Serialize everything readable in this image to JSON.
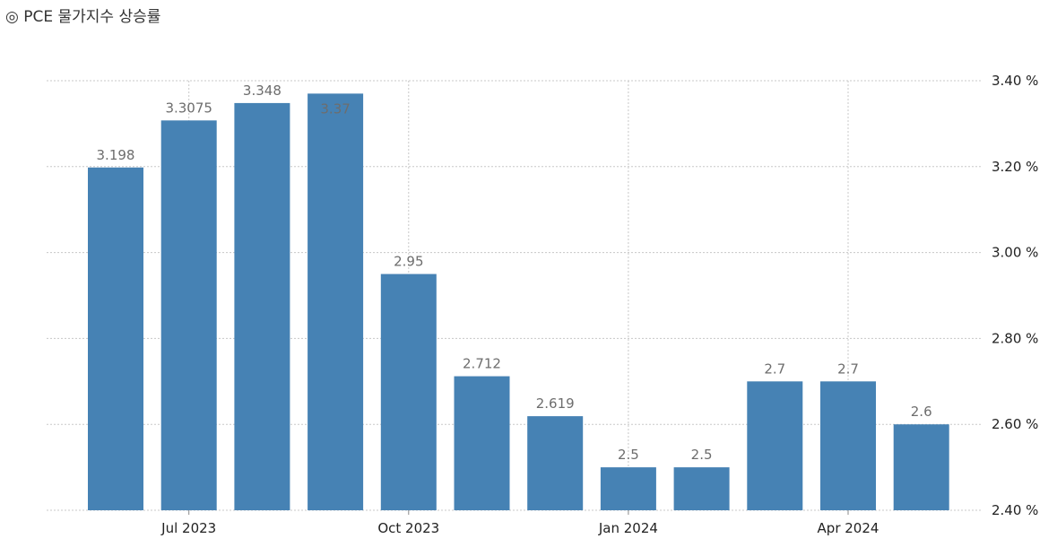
{
  "title": "◎ PCE 물가지수 상승률",
  "chart_data": {
    "type": "bar",
    "title": "◎ PCE 물가지수 상승률",
    "xlabel": "",
    "ylabel": "",
    "y_axis_side": "right",
    "ylim": [
      2.4,
      3.4
    ],
    "yticks": [
      2.4,
      2.6,
      2.8,
      3.0,
      3.2,
      3.4
    ],
    "ytick_labels": [
      "2.40 %",
      "2.60 %",
      "2.80 %",
      "3.00 %",
      "3.20 %",
      "3.40 %"
    ],
    "grid": true,
    "categories": [
      "2023-06",
      "2023-07",
      "2023-08",
      "2023-09",
      "2023-10",
      "2023-11",
      "2023-12",
      "2024-01",
      "2024-02",
      "2024-03",
      "2024-04",
      "2024-05"
    ],
    "values": [
      3.198,
      3.3075,
      3.348,
      3.37,
      2.95,
      2.712,
      2.619,
      2.5,
      2.5,
      2.7,
      2.7,
      2.6
    ],
    "data_labels": [
      "3.198",
      "3.3075",
      "3.348",
      "3.37",
      "2.95",
      "2.712",
      "2.619",
      "2.5",
      "2.5",
      "2.7",
      "2.7",
      "2.6"
    ],
    "x_tick_labels": [
      {
        "category": "2023-07",
        "label": "Jul 2023"
      },
      {
        "category": "2023-10",
        "label": "Oct 2023"
      },
      {
        "category": "2024-01",
        "label": "Jan 2024"
      },
      {
        "category": "2024-04",
        "label": "Apr 2024"
      }
    ],
    "bar_color": "#4682b4",
    "data_label_color": "#6d6d6d"
  }
}
